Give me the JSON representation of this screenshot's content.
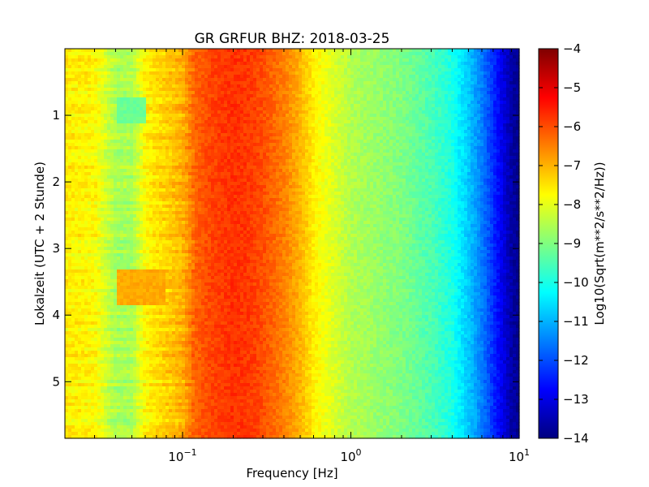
{
  "chart_data": {
    "type": "heatmap",
    "title": "GR GRFUR BHZ: 2018-03-25",
    "xlabel": "Frequency [Hz]",
    "ylabel": "Lokalzeit (UTC + 2 Stunde)",
    "xscale": "log",
    "xlim": [
      0.02,
      10
    ],
    "ylim": [
      5.85,
      0
    ],
    "x_ticks": [
      {
        "value": 0.1,
        "base": "10",
        "exp": "−1"
      },
      {
        "value": 1,
        "base": "10",
        "exp": "0"
      },
      {
        "value": 10,
        "base": "10",
        "exp": "1"
      }
    ],
    "y_ticks": [
      1,
      2,
      3,
      4,
      5
    ],
    "colorbar": {
      "label": "Log10(Sqrt(m**2/s**2/Hz))",
      "colormap": "jet",
      "range": [
        -14,
        -4
      ],
      "ticks": [
        "−4",
        "−5",
        "−6",
        "−7",
        "−8",
        "−9",
        "−10",
        "−11",
        "−12",
        "−13",
        "−14"
      ]
    },
    "spectrum_profile": {
      "frequency_hz": [
        0.02,
        0.03,
        0.04,
        0.05,
        0.06,
        0.08,
        0.1,
        0.12,
        0.15,
        0.2,
        0.25,
        0.3,
        0.4,
        0.5,
        0.6,
        0.7,
        1,
        1.5,
        2,
        3,
        4,
        5,
        6,
        7,
        8,
        9,
        10
      ],
      "log10_amplitude": [
        -7.6,
        -7.7,
        -8.6,
        -8.6,
        -7.7,
        -7.3,
        -7.0,
        -6.2,
        -5.9,
        -5.7,
        -5.8,
        -6.0,
        -6.5,
        -7.0,
        -7.6,
        -7.9,
        -8.5,
        -8.8,
        -9.0,
        -9.5,
        -10.0,
        -10.8,
        -11.5,
        -12.3,
        -13.0,
        -13.6,
        -13.9
      ]
    },
    "anomalies": [
      {
        "time_range": [
          3.3,
          3.85
        ],
        "freq_range": [
          0.04,
          0.08
        ],
        "log10_amplitude": -6.9
      },
      {
        "time_range": [
          0.75,
          1.1
        ],
        "freq_range": [
          0.04,
          0.06
        ],
        "log10_amplitude": -9.2
      }
    ],
    "grid": false
  }
}
